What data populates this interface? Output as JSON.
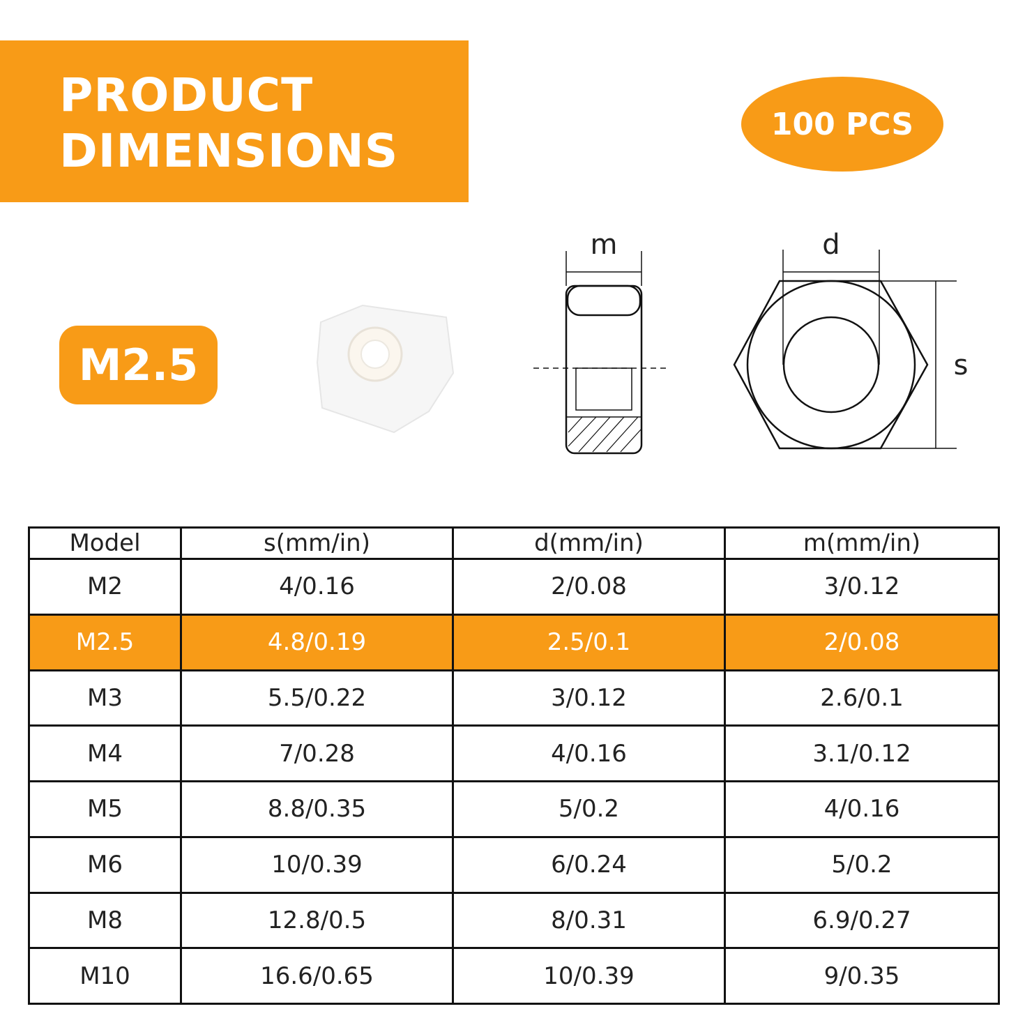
{
  "header": {
    "title_lines": [
      "PRODUCT",
      "DIMENSIONS"
    ],
    "badge": "100 PCS"
  },
  "model_label": "M2.5",
  "diagram": {
    "side_label": "m",
    "front_width_label": "d",
    "front_height_label": "s"
  },
  "table": {
    "columns": [
      "Model",
      "s(mm/in)",
      "d(mm/in)",
      "m(mm/in)"
    ],
    "rows": [
      [
        "M2",
        "4/0.16",
        "2/0.08",
        "3/0.12"
      ],
      [
        "M2.5",
        "4.8/0.19",
        "2.5/0.1",
        "2/0.08"
      ],
      [
        "M3",
        "5.5/0.22",
        "3/0.12",
        "2.6/0.1"
      ],
      [
        "M4",
        "7/0.28",
        "4/0.16",
        "3.1/0.12"
      ],
      [
        "M5",
        "8.8/0.35",
        "5/0.2",
        "4/0.16"
      ],
      [
        "M6",
        "10/0.39",
        "6/0.24",
        "5/0.2"
      ],
      [
        "M8",
        "12.8/0.5",
        "8/0.31",
        "6.9/0.27"
      ],
      [
        "M10",
        "16.6/0.65",
        "10/0.39",
        "9/0.35"
      ]
    ]
  }
}
